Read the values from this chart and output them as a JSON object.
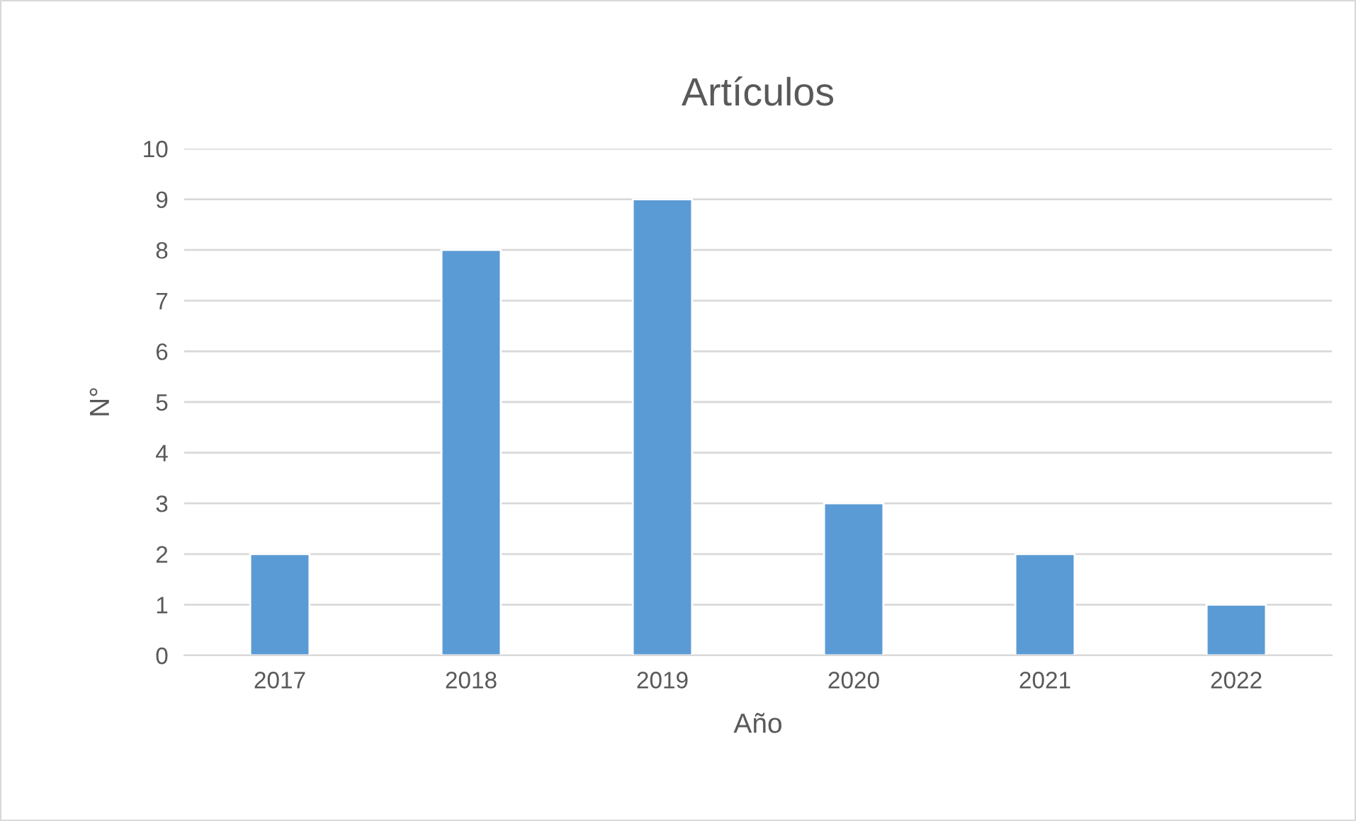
{
  "chart_data": {
    "type": "bar",
    "title": "Artículos",
    "xlabel": "Año",
    "ylabel": "N°",
    "categories": [
      "2017",
      "2018",
      "2019",
      "2020",
      "2021",
      "2022"
    ],
    "values": [
      2,
      8,
      9,
      3,
      2,
      1
    ],
    "color": "#5b9bd5",
    "ylim": [
      0,
      10
    ],
    "yticks": [
      0,
      1,
      2,
      3,
      4,
      5,
      6,
      7,
      8,
      9,
      10
    ],
    "grid": "y"
  }
}
